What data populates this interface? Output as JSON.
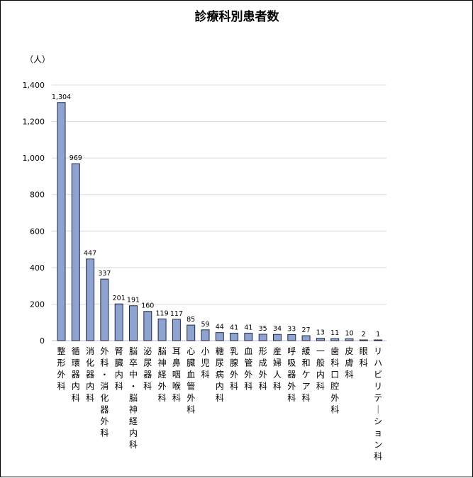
{
  "chart_data": {
    "type": "bar",
    "title": "診療科別患者数",
    "ylabel": "（人）",
    "xlabel": "",
    "ylim": [
      0,
      1400
    ],
    "yticks": [
      0,
      200,
      400,
      600,
      800,
      1000,
      1200,
      1400
    ],
    "ytick_labels": [
      "0",
      "200",
      "400",
      "600",
      "800",
      "1,000",
      "1,200",
      "1,400"
    ],
    "grid": true,
    "legend": "none",
    "bar_color": "#8ea3cf",
    "bar_edge_color": "#1f2a44",
    "grid_color": "#d9d9d9",
    "categories": [
      "整形外科",
      "循環器内科",
      "消化器内科",
      "外科・消化器外科",
      "腎臓内科",
      "脳卒中・脳神経内科",
      "泌尿器科",
      "脳神経外科",
      "耳鼻咽喉科",
      "心臓血管外科",
      "小児科",
      "糖尿病内科",
      "乳腺外科",
      "血管外科",
      "形成外科",
      "産婦人科",
      "呼吸器外科",
      "緩和ケア科",
      "一般内科",
      "歯科口腔外科",
      "皮膚科",
      "眼科",
      "リハビリテーション科"
    ],
    "values": [
      1304,
      969,
      447,
      337,
      201,
      191,
      160,
      119,
      117,
      85,
      59,
      44,
      41,
      41,
      35,
      34,
      33,
      27,
      13,
      11,
      10,
      2,
      1
    ],
    "data_labels": [
      "1,304",
      "969",
      "447",
      "337",
      "201",
      "191",
      "160",
      "119",
      "117",
      "85",
      "59",
      "44",
      "41",
      "41",
      "35",
      "34",
      "33",
      "27",
      "13",
      "11",
      "10",
      "2",
      "1"
    ]
  }
}
